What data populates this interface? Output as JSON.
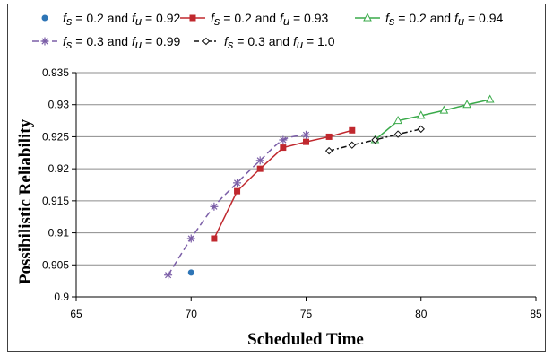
{
  "chart_data": {
    "type": "line",
    "title": "",
    "xlabel": "Scheduled Time",
    "ylabel": "Possibilistic Reliability",
    "xlim": [
      65,
      85
    ],
    "ylim": [
      0.9,
      0.935
    ],
    "xticks": [
      "65",
      "70",
      "75",
      "80",
      "85"
    ],
    "yticks": [
      "0.9",
      "0.905",
      "0.91",
      "0.915",
      "0.92",
      "0.925",
      "0.93",
      "0.935"
    ],
    "grid": "horizontal",
    "legend_position": "top",
    "series": [
      {
        "name": "f_s = 0.2 and f_u = 0.92",
        "legend": {
          "pre": "",
          "s_sub": "s",
          "mid": " = 0.2 and ",
          "u_sub": "u",
          "post": " = 0.92"
        },
        "color": "#2e75b6",
        "marker": "circle",
        "line": "none",
        "x": [
          70
        ],
        "y": [
          0.9038
        ]
      },
      {
        "name": "f_s = 0.2 and f_u = 0.93",
        "legend": {
          "pre": "",
          "s_sub": "s",
          "mid": " = 0.2 and ",
          "u_sub": "u",
          "post": " = 0.93"
        },
        "color": "#c0282e",
        "marker": "square",
        "line": "solid",
        "x": [
          71,
          72,
          73,
          74,
          75,
          76,
          77
        ],
        "y": [
          0.9091,
          0.9165,
          0.92,
          0.9233,
          0.9242,
          0.925,
          0.926
        ]
      },
      {
        "name": "f_s = 0.2 and f_u = 0.94",
        "legend": {
          "pre": "",
          "s_sub": "s",
          "mid": " = 0.2 and ",
          "u_sub": "u",
          "post": " = 0.94"
        },
        "color": "#3aaa4a",
        "marker": "triangle",
        "line": "solid",
        "x": [
          78,
          79,
          80,
          81,
          82,
          83
        ],
        "y": [
          0.9245,
          0.9275,
          0.9283,
          0.9291,
          0.93,
          0.9308
        ]
      },
      {
        "name": "f_s = 0.3 and f_u = 0.99",
        "legend": {
          "pre": "",
          "s_sub": "s",
          "mid": " = 0.3 and ",
          "u_sub": "u",
          "post": " = 0.99"
        },
        "color": "#7b5ea7",
        "marker": "star",
        "line": "dashed",
        "x": [
          69,
          70,
          71,
          72,
          73,
          74,
          75
        ],
        "y": [
          0.9034,
          0.9091,
          0.9141,
          0.9178,
          0.9213,
          0.9245,
          0.9253
        ]
      },
      {
        "name": "f_s = 0.3 and f_u = 1.0",
        "legend": {
          "pre": "",
          "s_sub": "s",
          "mid": " = 0.3 and ",
          "u_sub": "u",
          "post": " = 1.0"
        },
        "color": "#111111",
        "marker": "diamond",
        "line": "dashdot",
        "x": [
          76,
          77,
          78,
          79,
          80
        ],
        "y": [
          0.9228,
          0.9237,
          0.9245,
          0.9254,
          0.9262
        ]
      }
    ]
  }
}
